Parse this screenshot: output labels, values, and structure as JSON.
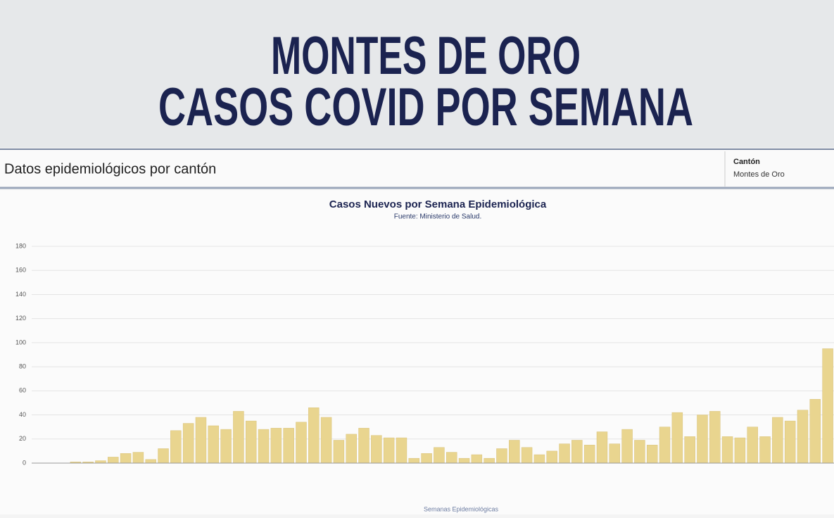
{
  "header": {
    "title_line1": "MONTES DE ORO",
    "title_line2": "CASOS COVID POR SEMANA"
  },
  "toolbar": {
    "label": "Datos epidemiológicos por cantón",
    "filter_label": "Cantón",
    "filter_value": "Montes de Oro"
  },
  "chart_data": {
    "type": "bar",
    "title": "Casos Nuevos por Semana Epidemiológica",
    "subtitle": "Fuente: Ministerio de Salud.",
    "x_label": "Semanas Epidemiológicas",
    "color": "#e9d58f",
    "values": [
      0,
      0,
      0,
      1,
      1,
      2,
      5,
      8,
      9,
      3,
      12,
      27,
      33,
      38,
      31,
      28,
      43,
      35,
      28,
      29,
      29,
      34,
      46,
      38,
      19,
      24,
      29,
      23,
      21,
      21,
      4,
      8,
      13,
      9,
      4,
      7,
      4,
      12,
      19,
      13,
      7,
      10,
      16,
      19,
      15,
      26,
      16,
      28,
      19,
      15,
      30,
      42,
      22,
      40,
      43,
      22,
      21,
      30,
      22,
      38,
      35,
      44,
      53,
      95
    ],
    "ylim": [
      0,
      180
    ],
    "yticks": [
      0,
      20,
      40,
      60,
      80,
      100,
      120,
      140,
      160,
      180
    ],
    "grid": true
  }
}
